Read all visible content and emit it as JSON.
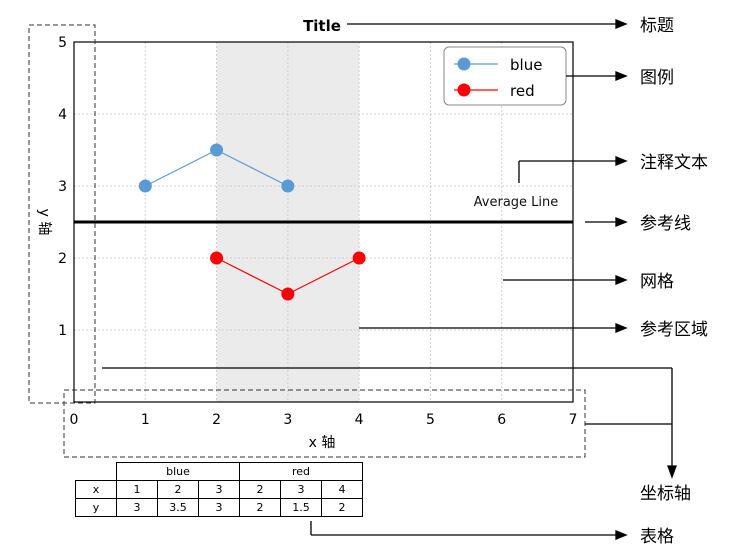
{
  "chart_data": {
    "type": "line",
    "title": "Title",
    "xlabel": "x 轴",
    "ylabel": "y 轴",
    "xlim": [
      0,
      7
    ],
    "ylim": [
      0,
      5
    ],
    "xticks": [
      "0",
      "1",
      "2",
      "3",
      "4",
      "5",
      "6",
      "7"
    ],
    "yticks": [
      "1",
      "2",
      "3",
      "4",
      "5"
    ],
    "grid": true,
    "legend_position": "top-right",
    "series": [
      {
        "name": "blue",
        "color": "#5b9bd5",
        "x": [
          1,
          2,
          3
        ],
        "y": [
          3,
          3.5,
          3
        ]
      },
      {
        "name": "red",
        "color": "#ff0000",
        "x": [
          2,
          3,
          4
        ],
        "y": [
          2,
          1.5,
          2
        ]
      }
    ],
    "reference_line": {
      "y": 2.5,
      "label": "Average Line"
    },
    "reference_region": {
      "x": [
        2,
        4
      ]
    }
  },
  "table": {
    "series_headers": [
      "blue",
      "red"
    ],
    "row_labels": [
      "x",
      "y"
    ],
    "x_values": [
      "1",
      "2",
      "3",
      "2",
      "3",
      "4"
    ],
    "y_values": [
      "3",
      "3.5",
      "3",
      "2",
      "1.5",
      "2"
    ]
  },
  "annotations": {
    "title": "标题",
    "legend": "图例",
    "text": "注释文本",
    "reference_line": "参考线",
    "grid": "网格",
    "reference_region": "参考区域",
    "axis": "坐标轴",
    "table": "表格"
  }
}
